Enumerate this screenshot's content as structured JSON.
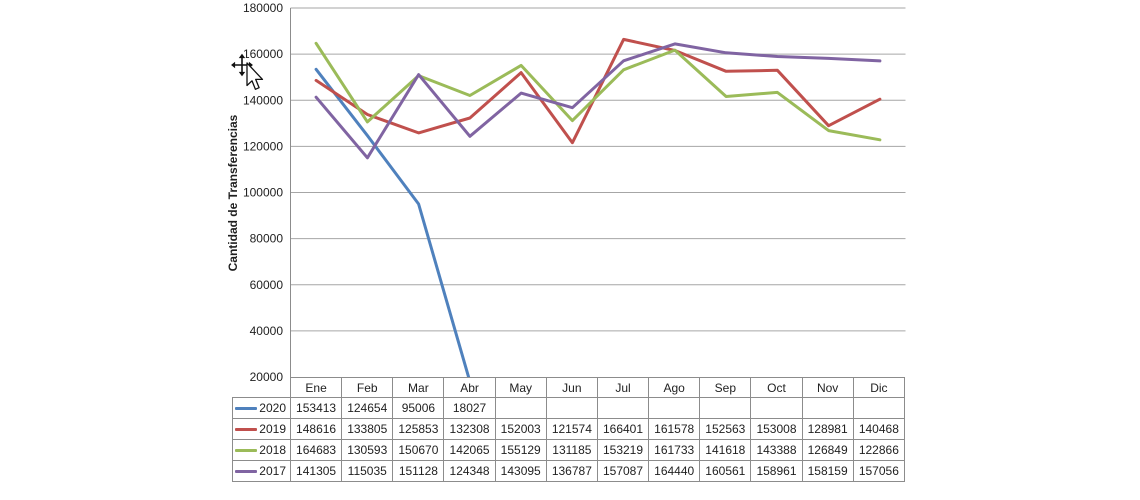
{
  "chart_data": {
    "type": "line",
    "title": "",
    "xlabel": "",
    "ylabel": "Cantidad de Transferencias",
    "ylim": [
      20000,
      180000
    ],
    "ytick_step": 20000,
    "grid": "horizontal-gridlines",
    "legend_position": "data-table-left-column",
    "categories": [
      "Ene",
      "Feb",
      "Mar",
      "Abr",
      "May",
      "Jun",
      "Jul",
      "Ago",
      "Sep",
      "Oct",
      "Nov",
      "Dic"
    ],
    "series": [
      {
        "name": "2020",
        "color": "#4F81BD",
        "values": [
          153413,
          124654,
          95006,
          18027,
          null,
          null,
          null,
          null,
          null,
          null,
          null,
          null
        ]
      },
      {
        "name": "2019",
        "color": "#C0504D",
        "values": [
          148616,
          133805,
          125853,
          132308,
          152003,
          121574,
          166401,
          161578,
          152563,
          153008,
          128981,
          140468
        ]
      },
      {
        "name": "2018",
        "color": "#9BBB59",
        "values": [
          164683,
          130593,
          150670,
          142065,
          155129,
          131185,
          153219,
          161733,
          141618,
          143388,
          126849,
          122866
        ]
      },
      {
        "name": "2017",
        "color": "#8064A2",
        "values": [
          141305,
          115035,
          151128,
          124348,
          143095,
          136787,
          157087,
          164440,
          160561,
          158961,
          158159,
          157056
        ]
      }
    ]
  },
  "colors": {
    "gridline": "#A6A6A6",
    "axis": "#8C8C8C",
    "text": "#1F1F1F"
  }
}
